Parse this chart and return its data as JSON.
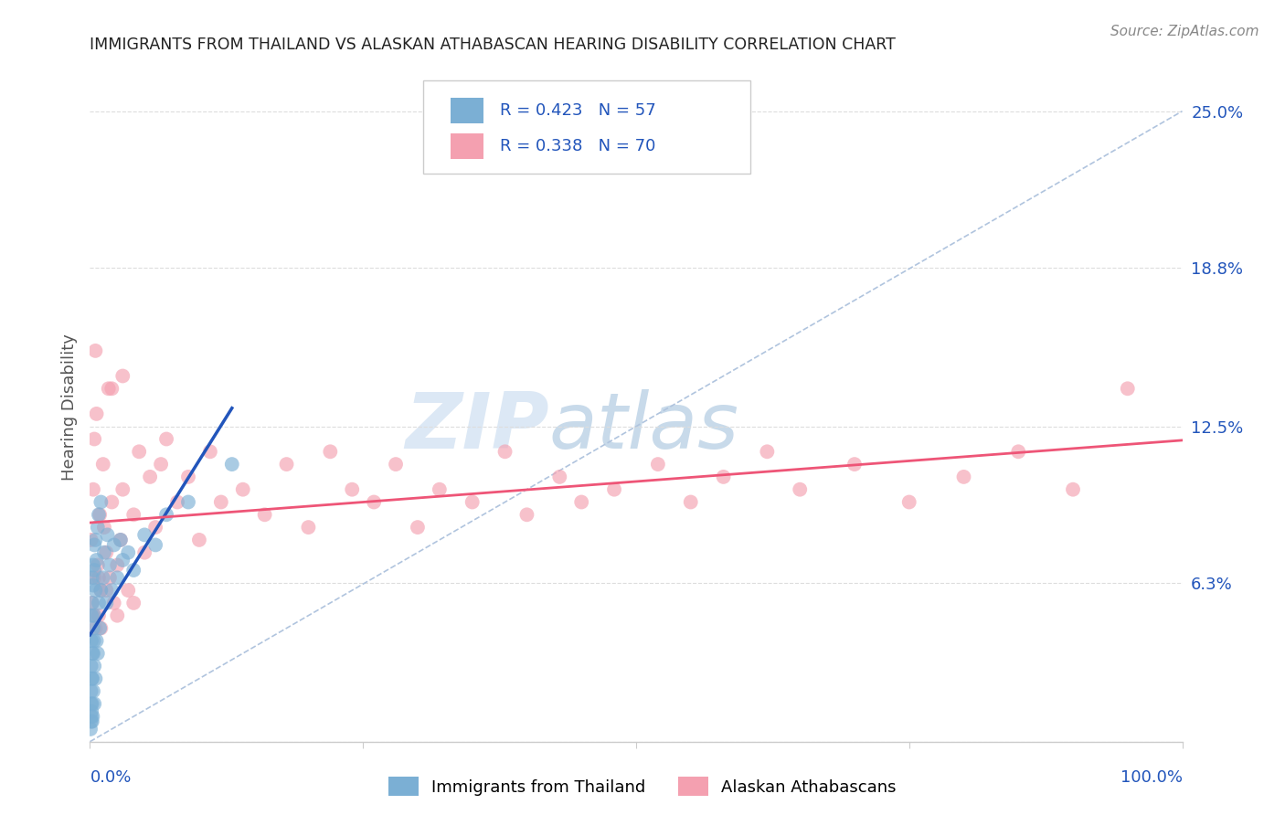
{
  "title": "IMMIGRANTS FROM THAILAND VS ALASKAN ATHABASCAN HEARING DISABILITY CORRELATION CHART",
  "source": "Source: ZipAtlas.com",
  "ylabel": "Hearing Disability",
  "blue_R": 0.423,
  "blue_N": 57,
  "pink_R": 0.338,
  "pink_N": 70,
  "blue_color": "#7bafd4",
  "pink_color": "#f4a0b0",
  "blue_line_color": "#2255bb",
  "pink_line_color": "#ee5577",
  "diagonal_color": "#b0c4de",
  "background_color": "#ffffff",
  "legend_text_color": "#2255bb",
  "ytick_color": "#2255bb",
  "xtick_color": "#2255bb",
  "watermark_color": "#dce8f5",
  "title_color": "#222222",
  "ylabel_color": "#555555",
  "source_color": "#888888",
  "grid_color": "#dddddd",
  "spine_color": "#cccccc",
  "xlim": [
    0.0,
    1.0
  ],
  "ylim": [
    0.0,
    0.265
  ],
  "y_ticks": [
    0.0,
    0.063,
    0.125,
    0.188,
    0.25
  ],
  "y_tick_labels": [
    "",
    "6.3%",
    "12.5%",
    "18.8%",
    "25.0%"
  ],
  "x_tick_labels_show": [
    "0.0%",
    "100.0%"
  ],
  "blue_x": [
    0.0005,
    0.001,
    0.001,
    0.001,
    0.001,
    0.0012,
    0.0013,
    0.0015,
    0.0015,
    0.0018,
    0.002,
    0.002,
    0.002,
    0.002,
    0.002,
    0.0022,
    0.0025,
    0.003,
    0.003,
    0.003,
    0.003,
    0.003,
    0.0035,
    0.004,
    0.004,
    0.004,
    0.004,
    0.004,
    0.005,
    0.005,
    0.005,
    0.006,
    0.006,
    0.007,
    0.007,
    0.008,
    0.008,
    0.009,
    0.01,
    0.01,
    0.012,
    0.013,
    0.015,
    0.016,
    0.018,
    0.02,
    0.022,
    0.025,
    0.028,
    0.03,
    0.035,
    0.04,
    0.05,
    0.06,
    0.07,
    0.09,
    0.13
  ],
  "blue_y": [
    0.005,
    0.008,
    0.015,
    0.02,
    0.03,
    0.01,
    0.04,
    0.012,
    0.05,
    0.025,
    0.008,
    0.015,
    0.025,
    0.055,
    0.065,
    0.035,
    0.01,
    0.02,
    0.035,
    0.045,
    0.062,
    0.07,
    0.04,
    0.015,
    0.03,
    0.05,
    0.068,
    0.078,
    0.025,
    0.06,
    0.08,
    0.04,
    0.072,
    0.035,
    0.085,
    0.055,
    0.09,
    0.045,
    0.06,
    0.095,
    0.065,
    0.075,
    0.055,
    0.082,
    0.07,
    0.06,
    0.078,
    0.065,
    0.08,
    0.072,
    0.075,
    0.068,
    0.082,
    0.078,
    0.09,
    0.095,
    0.11
  ],
  "pink_x": [
    0.001,
    0.002,
    0.003,
    0.004,
    0.004,
    0.005,
    0.006,
    0.007,
    0.008,
    0.009,
    0.01,
    0.012,
    0.013,
    0.015,
    0.017,
    0.018,
    0.02,
    0.022,
    0.025,
    0.028,
    0.03,
    0.035,
    0.04,
    0.045,
    0.05,
    0.055,
    0.06,
    0.065,
    0.07,
    0.08,
    0.09,
    0.1,
    0.11,
    0.12,
    0.14,
    0.16,
    0.18,
    0.2,
    0.22,
    0.24,
    0.26,
    0.28,
    0.3,
    0.32,
    0.35,
    0.38,
    0.4,
    0.43,
    0.45,
    0.48,
    0.52,
    0.55,
    0.58,
    0.62,
    0.65,
    0.7,
    0.75,
    0.8,
    0.85,
    0.9,
    0.003,
    0.005,
    0.008,
    0.01,
    0.015,
    0.02,
    0.025,
    0.03,
    0.04,
    0.95
  ],
  "pink_y": [
    0.08,
    0.055,
    0.1,
    0.065,
    0.12,
    0.045,
    0.13,
    0.07,
    0.05,
    0.09,
    0.06,
    0.11,
    0.085,
    0.075,
    0.14,
    0.065,
    0.095,
    0.055,
    0.07,
    0.08,
    0.1,
    0.06,
    0.09,
    0.115,
    0.075,
    0.105,
    0.085,
    0.11,
    0.12,
    0.095,
    0.105,
    0.08,
    0.115,
    0.095,
    0.1,
    0.09,
    0.11,
    0.085,
    0.115,
    0.1,
    0.095,
    0.11,
    0.085,
    0.1,
    0.095,
    0.115,
    0.09,
    0.105,
    0.095,
    0.1,
    0.11,
    0.095,
    0.105,
    0.115,
    0.1,
    0.11,
    0.095,
    0.105,
    0.115,
    0.1,
    0.05,
    0.155,
    0.065,
    0.045,
    0.06,
    0.14,
    0.05,
    0.145,
    0.055,
    0.14
  ]
}
